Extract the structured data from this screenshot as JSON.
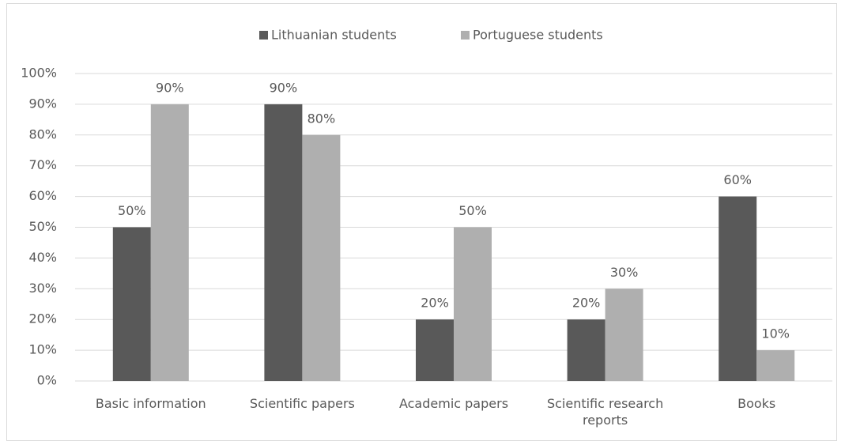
{
  "chart_data": {
    "type": "bar",
    "categories": [
      "Basic information",
      "Scientific papers",
      "Academic papers",
      "Scientific research reports",
      "Books"
    ],
    "series": [
      {
        "name": "Lithuanian students",
        "color": "#595959",
        "values": [
          50,
          90,
          20,
          20,
          60
        ],
        "value_labels": [
          "50%",
          "90%",
          "20%",
          "20%",
          "60%"
        ]
      },
      {
        "name": "Portuguese students",
        "color": "#afafaf",
        "values": [
          90,
          80,
          50,
          30,
          10
        ],
        "value_labels": [
          "90%",
          "80%",
          "50%",
          "30%",
          "10%"
        ]
      }
    ],
    "ylim": [
      0,
      100
    ],
    "yticks": [
      {
        "value": 0,
        "label": "0%"
      },
      {
        "value": 10,
        "label": "10%"
      },
      {
        "value": 20,
        "label": "20%"
      },
      {
        "value": 30,
        "label": "30%"
      },
      {
        "value": 40,
        "label": "40%"
      },
      {
        "value": 50,
        "label": "50%"
      },
      {
        "value": 60,
        "label": "60%"
      },
      {
        "value": 70,
        "label": "70%"
      },
      {
        "value": 80,
        "label": "80%"
      },
      {
        "value": 90,
        "label": "90%"
      },
      {
        "value": 100,
        "label": "100%"
      }
    ],
    "grid": true,
    "legend": "top"
  }
}
